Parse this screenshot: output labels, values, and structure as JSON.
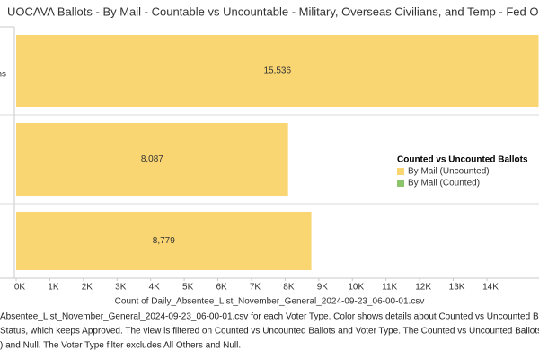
{
  "chart_data": {
    "type": "bar",
    "orientation": "horizontal",
    "title": "UOCAVA Ballots - By Mail - Countable vs Uncountable - Military, Overseas Civilians, and Temp - Fed Only",
    "categories": [
      "ns",
      null,
      null
    ],
    "series": [
      {
        "name": "By Mail (Uncounted)",
        "color": "#f9d672",
        "values": [
          15536,
          8087,
          8779
        ],
        "value_labels": [
          "15,536",
          "8,087",
          "8,779"
        ]
      },
      {
        "name": "By Mail (Counted)",
        "color": "#8cc56b",
        "values": [
          null,
          null,
          null
        ]
      }
    ],
    "legend_title": "Counted vs Uncounted Ballots",
    "legend_position": "right",
    "xlabel": "Count of Daily_Absentee_List_November_General_2024-09-23_06-00-01.csv",
    "xlim": [
      0,
      15550
    ],
    "xticks": [
      {
        "value": 0,
        "label": "0K"
      },
      {
        "value": 1000,
        "label": "1K"
      },
      {
        "value": 2000,
        "label": "2K"
      },
      {
        "value": 3000,
        "label": "3K"
      },
      {
        "value": 4000,
        "label": "4K"
      },
      {
        "value": 5000,
        "label": "5K"
      },
      {
        "value": 6000,
        "label": "6K"
      },
      {
        "value": 7000,
        "label": "7K"
      },
      {
        "value": 8000,
        "label": "8K"
      },
      {
        "value": 9000,
        "label": "9K"
      },
      {
        "value": 10000,
        "label": "10K"
      },
      {
        "value": 11000,
        "label": "11K"
      },
      {
        "value": 12000,
        "label": "12K"
      },
      {
        "value": 13000,
        "label": "13K"
      },
      {
        "value": 14000,
        "label": "14K"
      }
    ],
    "grid": false,
    "caption": [
      "Absentee_List_November_General_2024-09-23_06-00-01.csv for each Voter Type.  Color shows details about Counted vs Uncounted Ballots.",
      "Status, which keeps Approved. The view is filtered on Counted vs Uncounted Ballots and Voter Type. The Counted vs Uncounted Ballots filte",
      ") and Null. The Voter Type filter excludes All Others and Null."
    ]
  }
}
